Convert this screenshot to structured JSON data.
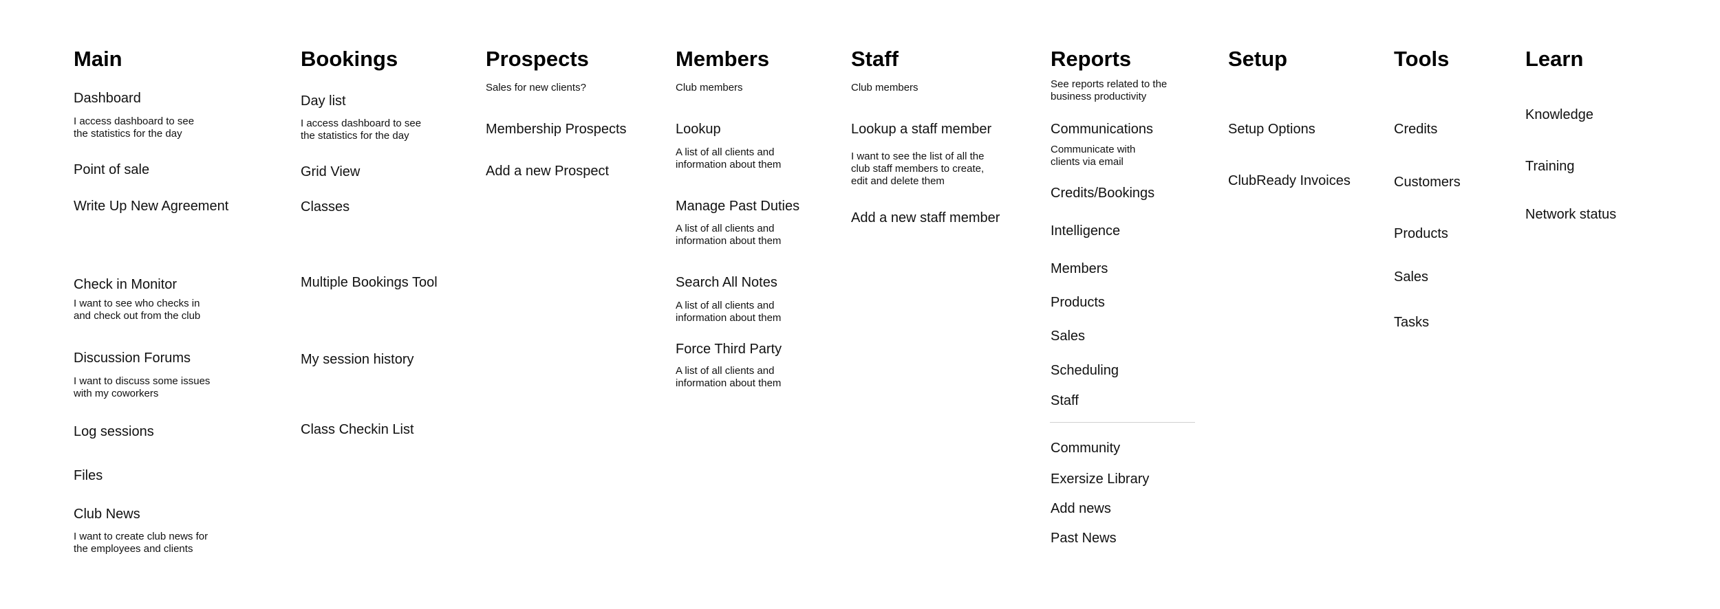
{
  "columns": [
    {
      "title": "Main",
      "items": [
        {
          "label": "Dashboard",
          "description": "I access dashboard to see\nthe statistics for the day"
        },
        {
          "label": "Point of sale"
        },
        {
          "label": "Write Up New Agreement"
        },
        {
          "label": "Check in Monitor",
          "description": "I want to see who checks in\nand check out from the club"
        },
        {
          "label": "Discussion Forums",
          "description": "I want to discuss some issues\nwith my coworkers"
        },
        {
          "label": "Log sessions"
        },
        {
          "label": "Files"
        },
        {
          "label": "Club News",
          "description": "I want to create club news for\nthe employees and clients"
        }
      ]
    },
    {
      "title": "Bookings",
      "items": [
        {
          "label": "Day list",
          "description": "I access dashboard to see\nthe statistics for the day"
        },
        {
          "label": "Grid View"
        },
        {
          "label": "Classes"
        },
        {
          "label": "Multiple Bookings Tool"
        },
        {
          "label": "My session history"
        },
        {
          "label": "Class Checkin List"
        }
      ]
    },
    {
      "title": "Prospects",
      "subtitle": "Sales for new clients?",
      "items": [
        {
          "label": "Membership Prospects"
        },
        {
          "label": "Add a new Prospect"
        }
      ]
    },
    {
      "title": "Members",
      "subtitle": "Club members",
      "items": [
        {
          "label": "Lookup",
          "description": "A list of all clients and\ninformation about them"
        },
        {
          "label": "Manage Past Duties",
          "description": "A list of all clients and\ninformation about them"
        },
        {
          "label": "Search All Notes",
          "description": "A list of all clients and\ninformation about them"
        },
        {
          "label": "Force Third Party",
          "description": "A list of all clients and\ninformation about them"
        }
      ]
    },
    {
      "title": "Staff",
      "subtitle": "Club members",
      "items": [
        {
          "label": "Lookup a staff member",
          "description": "I want to see the list of all the\nclub staff members to create,\nedit and delete them"
        },
        {
          "label": "Add a new staff member"
        }
      ]
    },
    {
      "title": "Reports",
      "subtitle": "See reports related to the\nbusiness productivity",
      "items": [
        {
          "label": "Communications",
          "description": "Communicate with\nclients via email"
        },
        {
          "label": "Credits/Bookings"
        },
        {
          "label": "Intelligence"
        },
        {
          "label": "Members"
        },
        {
          "label": "Products"
        },
        {
          "label": "Sales"
        },
        {
          "label": "Scheduling"
        },
        {
          "label": "Staff"
        },
        {
          "label": "Community"
        },
        {
          "label": "Exersize Library"
        },
        {
          "label": "Add news"
        },
        {
          "label": "Past News"
        }
      ]
    },
    {
      "title": "Setup",
      "items": [
        {
          "label": "Setup Options"
        },
        {
          "label": "ClubReady Invoices"
        }
      ]
    },
    {
      "title": "Tools",
      "items": [
        {
          "label": "Credits"
        },
        {
          "label": "Customers"
        },
        {
          "label": "Products"
        },
        {
          "label": "Sales"
        },
        {
          "label": "Tasks"
        }
      ]
    },
    {
      "title": "Learn",
      "items": [
        {
          "label": "Knowledge"
        },
        {
          "label": "Training"
        },
        {
          "label": "Network status"
        }
      ]
    }
  ]
}
